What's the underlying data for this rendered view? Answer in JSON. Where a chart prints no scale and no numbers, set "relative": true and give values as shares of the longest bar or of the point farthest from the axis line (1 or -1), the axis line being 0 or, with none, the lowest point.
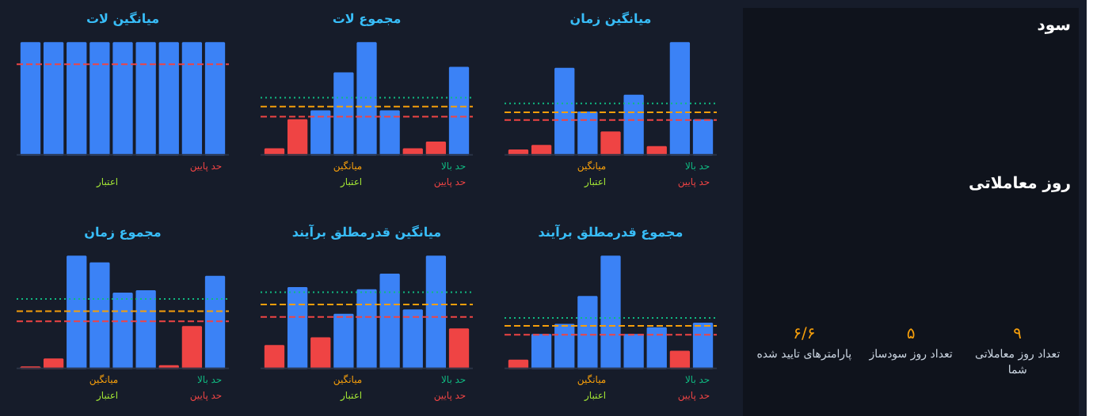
{
  "chart_data": [
    {
      "type": "bar",
      "title": "میانگین لات",
      "relative": true,
      "categories": [
        null,
        null,
        null,
        null,
        null,
        null,
        null,
        null,
        null
      ],
      "values": [
        1,
        1,
        1,
        1,
        1,
        1,
        1,
        1,
        1
      ],
      "colors": [
        "#3b82f6",
        "#3b82f6",
        "#3b82f6",
        "#3b82f6",
        "#3b82f6",
        "#3b82f6",
        "#3b82f6",
        "#3b82f6",
        "#3b82f6"
      ],
      "ref_lines": [
        {
          "axis": "y",
          "value": 0.81,
          "label": "حد پایین",
          "color": "#ef4444",
          "line_style": "dashed"
        }
      ],
      "annotations": [
        "اعتبار"
      ]
    },
    {
      "type": "bar",
      "title": "مجموع لات",
      "relative": true,
      "categories": [
        null,
        null,
        null,
        null,
        null,
        null,
        null,
        null,
        null
      ],
      "values": [
        0.05,
        0.31,
        0.39,
        0.73,
        1,
        0.39,
        0.05,
        0.11,
        0.78
      ],
      "colors": [
        "#ef4444",
        "#ef4444",
        "#3b82f6",
        "#3b82f6",
        "#3b82f6",
        "#3b82f6",
        "#ef4444",
        "#ef4444",
        "#3b82f6"
      ],
      "ref_lines": [
        {
          "axis": "y",
          "value": 0.51,
          "label": "حد بالا",
          "color": "#10b981",
          "line_style": "dotted"
        },
        {
          "axis": "y",
          "value": 0.43,
          "label": "میانگین",
          "color": "#f59e0b",
          "line_style": "dashed"
        },
        {
          "axis": "y",
          "value": 0.34,
          "label": "حد پایین",
          "color": "#ef4444",
          "line_style": "dashed"
        }
      ],
      "annotations": [
        "اعتبار"
      ]
    },
    {
      "type": "bar",
      "title": "میانگین زمان",
      "relative": true,
      "categories": [
        null,
        null,
        null,
        null,
        null,
        null,
        null,
        null,
        null
      ],
      "values": [
        0.04,
        0.08,
        0.77,
        0.38,
        0.2,
        0.53,
        0.07,
        1,
        0.31
      ],
      "colors": [
        "#ef4444",
        "#ef4444",
        "#3b82f6",
        "#3b82f6",
        "#ef4444",
        "#3b82f6",
        "#ef4444",
        "#3b82f6",
        "#3b82f6"
      ],
      "ref_lines": [
        {
          "axis": "y",
          "value": 0.46,
          "label": "حد بالا",
          "color": "#10b981",
          "line_style": "dotted"
        },
        {
          "axis": "y",
          "value": 0.38,
          "label": "میانگین",
          "color": "#f59e0b",
          "line_style": "dashed"
        },
        {
          "axis": "y",
          "value": 0.31,
          "label": "حد پایین",
          "color": "#ef4444",
          "line_style": "dashed"
        }
      ],
      "annotations": [
        "اعتبار"
      ]
    },
    {
      "type": "bar",
      "title": "مجموع زمان",
      "relative": true,
      "categories": [
        null,
        null,
        null,
        null,
        null,
        null,
        null,
        null,
        null
      ],
      "values": [
        0.01,
        0.08,
        1,
        0.94,
        0.67,
        0.69,
        0.02,
        0.37,
        0.82
      ],
      "colors": [
        "#ef4444",
        "#ef4444",
        "#3b82f6",
        "#3b82f6",
        "#3b82f6",
        "#3b82f6",
        "#ef4444",
        "#ef4444",
        "#3b82f6"
      ],
      "ref_lines": [
        {
          "axis": "y",
          "value": 0.62,
          "label": "حد بالا",
          "color": "#10b981",
          "line_style": "dotted"
        },
        {
          "axis": "y",
          "value": 0.51,
          "label": "میانگین",
          "color": "#f59e0b",
          "line_style": "dashed"
        },
        {
          "axis": "y",
          "value": 0.42,
          "label": "حد پایین",
          "color": "#ef4444",
          "line_style": "dashed"
        }
      ],
      "annotations": [
        "اعتبار"
      ]
    },
    {
      "type": "bar",
      "title": "میانگین قدرمطلق برآیند",
      "relative": true,
      "categories": [
        null,
        null,
        null,
        null,
        null,
        null,
        null,
        null,
        null
      ],
      "values": [
        0.2,
        0.72,
        0.27,
        0.48,
        0.7,
        0.84,
        0.52,
        1,
        0.35
      ],
      "colors": [
        "#ef4444",
        "#3b82f6",
        "#ef4444",
        "#3b82f6",
        "#3b82f6",
        "#3b82f6",
        "#3b82f6",
        "#3b82f6",
        "#ef4444"
      ],
      "ref_lines": [
        {
          "axis": "y",
          "value": 0.68,
          "label": "حد بالا",
          "color": "#10b981",
          "line_style": "dotted"
        },
        {
          "axis": "y",
          "value": 0.57,
          "label": "میانگین",
          "color": "#f59e0b",
          "line_style": "dashed"
        },
        {
          "axis": "y",
          "value": 0.46,
          "label": "حد پایین",
          "color": "#ef4444",
          "line_style": "dashed"
        }
      ],
      "annotations": [
        "اعتبار"
      ]
    },
    {
      "type": "bar",
      "title": "مجموع قدرمطلق برآیند",
      "relative": true,
      "categories": [
        null,
        null,
        null,
        null,
        null,
        null,
        null,
        null,
        null
      ],
      "values": [
        0.07,
        0.3,
        0.39,
        0.64,
        1,
        0.3,
        0.36,
        0.15,
        0.4
      ],
      "colors": [
        "#ef4444",
        "#3b82f6",
        "#3b82f6",
        "#3b82f6",
        "#3b82f6",
        "#3b82f6",
        "#3b82f6",
        "#ef4444",
        "#3b82f6"
      ],
      "ref_lines": [
        {
          "axis": "y",
          "value": 0.45,
          "label": "حد بالا",
          "color": "#10b981",
          "line_style": "dotted"
        },
        {
          "axis": "y",
          "value": 0.38,
          "label": "میانگین",
          "color": "#f59e0b",
          "line_style": "dashed"
        },
        {
          "axis": "y",
          "value": 0.3,
          "label": "حد پایین",
          "color": "#ef4444",
          "line_style": "dashed"
        }
      ],
      "annotations": [
        "اعتبار"
      ]
    },
    {
      "type": "other",
      "annotations": [
        "سود",
        "روز معاملاتی",
        "۹",
        "تعداد روز معاملاتی شما",
        "۵",
        "تعداد روز سودساز",
        "۶/۶",
        "پارامترهای تایید شده"
      ]
    }
  ]
}
